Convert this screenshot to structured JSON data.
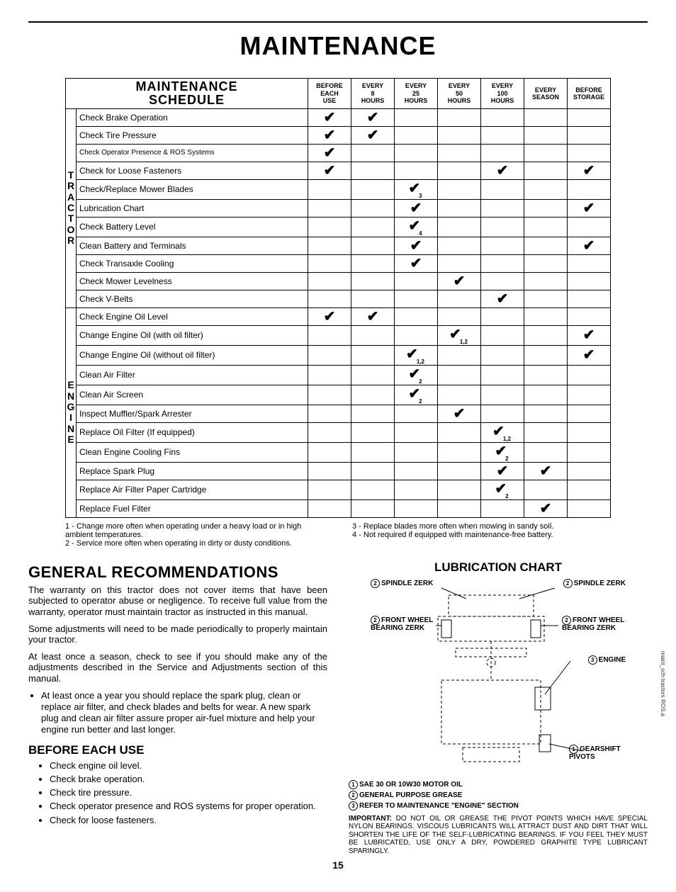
{
  "page_title": "MAINTENANCE",
  "schedule_title_l1": "MAINTENANCE",
  "schedule_title_l2": "SCHEDULE",
  "columns": [
    "BEFORE EACH USE",
    "EVERY 8 HOURS",
    "EVERY 25 HOURS",
    "EVERY 50 HOURS",
    "EVERY 100 HOURS",
    "EVERY SEASON",
    "BEFORE STORAGE"
  ],
  "cat_tractor": "TRACTOR",
  "cat_engine": "ENGINE",
  "tractor_rows": [
    {
      "label": "Check Brake Operation",
      "marks": [
        "✔",
        "✔",
        "",
        "",
        "",
        "",
        ""
      ]
    },
    {
      "label": "Check Tire Pressure",
      "marks": [
        "✔",
        "✔",
        "",
        "",
        "",
        "",
        ""
      ]
    },
    {
      "label": "Check Operator Presence & ROS Systems",
      "marks": [
        "✔",
        "",
        "",
        "",
        "",
        "",
        ""
      ],
      "small": true
    },
    {
      "label": "Check for Loose Fasteners",
      "marks": [
        "✔",
        "",
        "",
        "",
        "✔",
        "",
        "✔"
      ]
    },
    {
      "label": "Check/Replace Mower Blades",
      "marks": [
        "",
        "",
        "✔₃",
        "",
        "",
        "",
        ""
      ]
    },
    {
      "label": "Lubrication Chart",
      "marks": [
        "",
        "",
        "✔",
        "",
        "",
        "",
        "✔"
      ]
    },
    {
      "label": "Check Battery Level",
      "marks": [
        "",
        "",
        "✔₄",
        "",
        "",
        "",
        ""
      ]
    },
    {
      "label": "Clean Battery and Terminals",
      "marks": [
        "",
        "",
        "✔",
        "",
        "",
        "",
        "✔"
      ]
    },
    {
      "label": "Check Transaxle Cooling",
      "marks": [
        "",
        "",
        "✔",
        "",
        "",
        "",
        ""
      ]
    },
    {
      "label": "Check Mower Levelness",
      "marks": [
        "",
        "",
        "",
        "✔",
        "",
        "",
        ""
      ]
    },
    {
      "label": "Check V-Belts",
      "marks": [
        "",
        "",
        "",
        "",
        "✔",
        "",
        ""
      ]
    }
  ],
  "engine_rows": [
    {
      "label": "Check Engine Oil Level",
      "marks": [
        "✔",
        "✔",
        "",
        "",
        "",
        "",
        ""
      ]
    },
    {
      "label": "Change Engine Oil (with oil filter)",
      "marks": [
        "",
        "",
        "",
        "✔₁,₂",
        "",
        "",
        "✔"
      ]
    },
    {
      "label": "Change Engine Oil (without oil filter)",
      "marks": [
        "",
        "",
        "✔₁,₂",
        "",
        "",
        "",
        "✔"
      ]
    },
    {
      "label": "Clean Air Filter",
      "marks": [
        "",
        "",
        "✔₂",
        "",
        "",
        "",
        ""
      ]
    },
    {
      "label": "Clean Air Screen",
      "marks": [
        "",
        "",
        "✔₂",
        "",
        "",
        "",
        ""
      ]
    },
    {
      "label": "Inspect Muffler/Spark Arrester",
      "marks": [
        "",
        "",
        "",
        "✔",
        "",
        "",
        ""
      ]
    },
    {
      "label": "Replace Oil Filter (If equipped)",
      "marks": [
        "",
        "",
        "",
        "",
        "✔₁,₂",
        "",
        ""
      ]
    },
    {
      "label": "Clean Engine Cooling Fins",
      "marks": [
        "",
        "",
        "",
        "",
        "✔₂",
        "",
        ""
      ]
    },
    {
      "label": "Replace Spark Plug",
      "marks": [
        "",
        "",
        "",
        "",
        "✔",
        "✔",
        ""
      ]
    },
    {
      "label": "Replace Air Filter Paper Cartridge",
      "marks": [
        "",
        "",
        "",
        "",
        "✔₂",
        "",
        ""
      ]
    },
    {
      "label": "Replace Fuel Filter",
      "marks": [
        "",
        "",
        "",
        "",
        "",
        "✔",
        ""
      ]
    }
  ],
  "footnotes_left": [
    "1 - Change more often when operating under a heavy load or in high ambient temperatures.",
    "2 - Service more often when operating in dirty or dusty conditions."
  ],
  "footnotes_right": [
    "3 - Replace blades more often when mowing in sandy soil.",
    "4 - Not required if equipped with maintenance-free battery."
  ],
  "gen_rec_title": "GENERAL RECOMMENDATIONS",
  "gen_rec_p1": "The warranty on this tractor does not cover items that have been subjected to operator abuse or negligence. To receive full value from the warranty, operator must maintain tractor as instructed in this manual.",
  "gen_rec_p2": "Some adjustments will need to be made periodically to properly maintain your tractor.",
  "gen_rec_p3": "At least once a season, check to see if you should make any of the adjustments described in the Service and Adjustments section of this manual.",
  "gen_rec_bullet": "At least once a year you should replace the spark plug, clean or replace air filter, and check blades and belts for wear.  A new spark plug and clean air filter assure proper air-fuel mixture and help your engine run better and last longer.",
  "before_use_title": "BEFORE EACH USE",
  "before_use_items": [
    "Check engine oil level.",
    "Check brake operation.",
    "Check tire pressure.",
    "Check operator presence and ROS systems for proper operation.",
    "Check for loose fasteners."
  ],
  "lub_title": "LUBRICATION CHART",
  "lub_labels": {
    "spindle_left": "SPINDLE ZERK",
    "spindle_right": "SPINDLE ZERK",
    "wheel_left": "FRONT WHEEL BEARING ZERK",
    "wheel_right": "FRONT WHEEL BEARING  ZERK",
    "engine": "ENGINE",
    "gearshift": "GEARSHIFT PIVOTS"
  },
  "lub_key1": "SAE 30 OR 10W30 MOTOR OIL",
  "lub_key2": "GENERAL PURPOSE GREASE",
  "lub_key3": "REFER TO MAINTENANCE \"ENGINE\"  SECTION",
  "important_label": "IMPORTANT:",
  "important_text": "  DO NOT OIL OR GREASE THE PIVOT POINTS WHICH HAVE SPECIAL NYLON BEARINGS.  VISCOUS LUBRICANTS WILL ATTRACT DUST AND DIRT THAT WILL SHORTEN THE LIFE OF THE SELF-LUBRICATING BEARINGS.  IF YOU FEEL THEY MUST BE LUBRICATED, USE ONLY A DRY, POWDERED GRAPHITE TYPE LUBRICANT SPARINGLY.",
  "page_number": "15",
  "side_note": "maint_sch-tractors ROS.a"
}
